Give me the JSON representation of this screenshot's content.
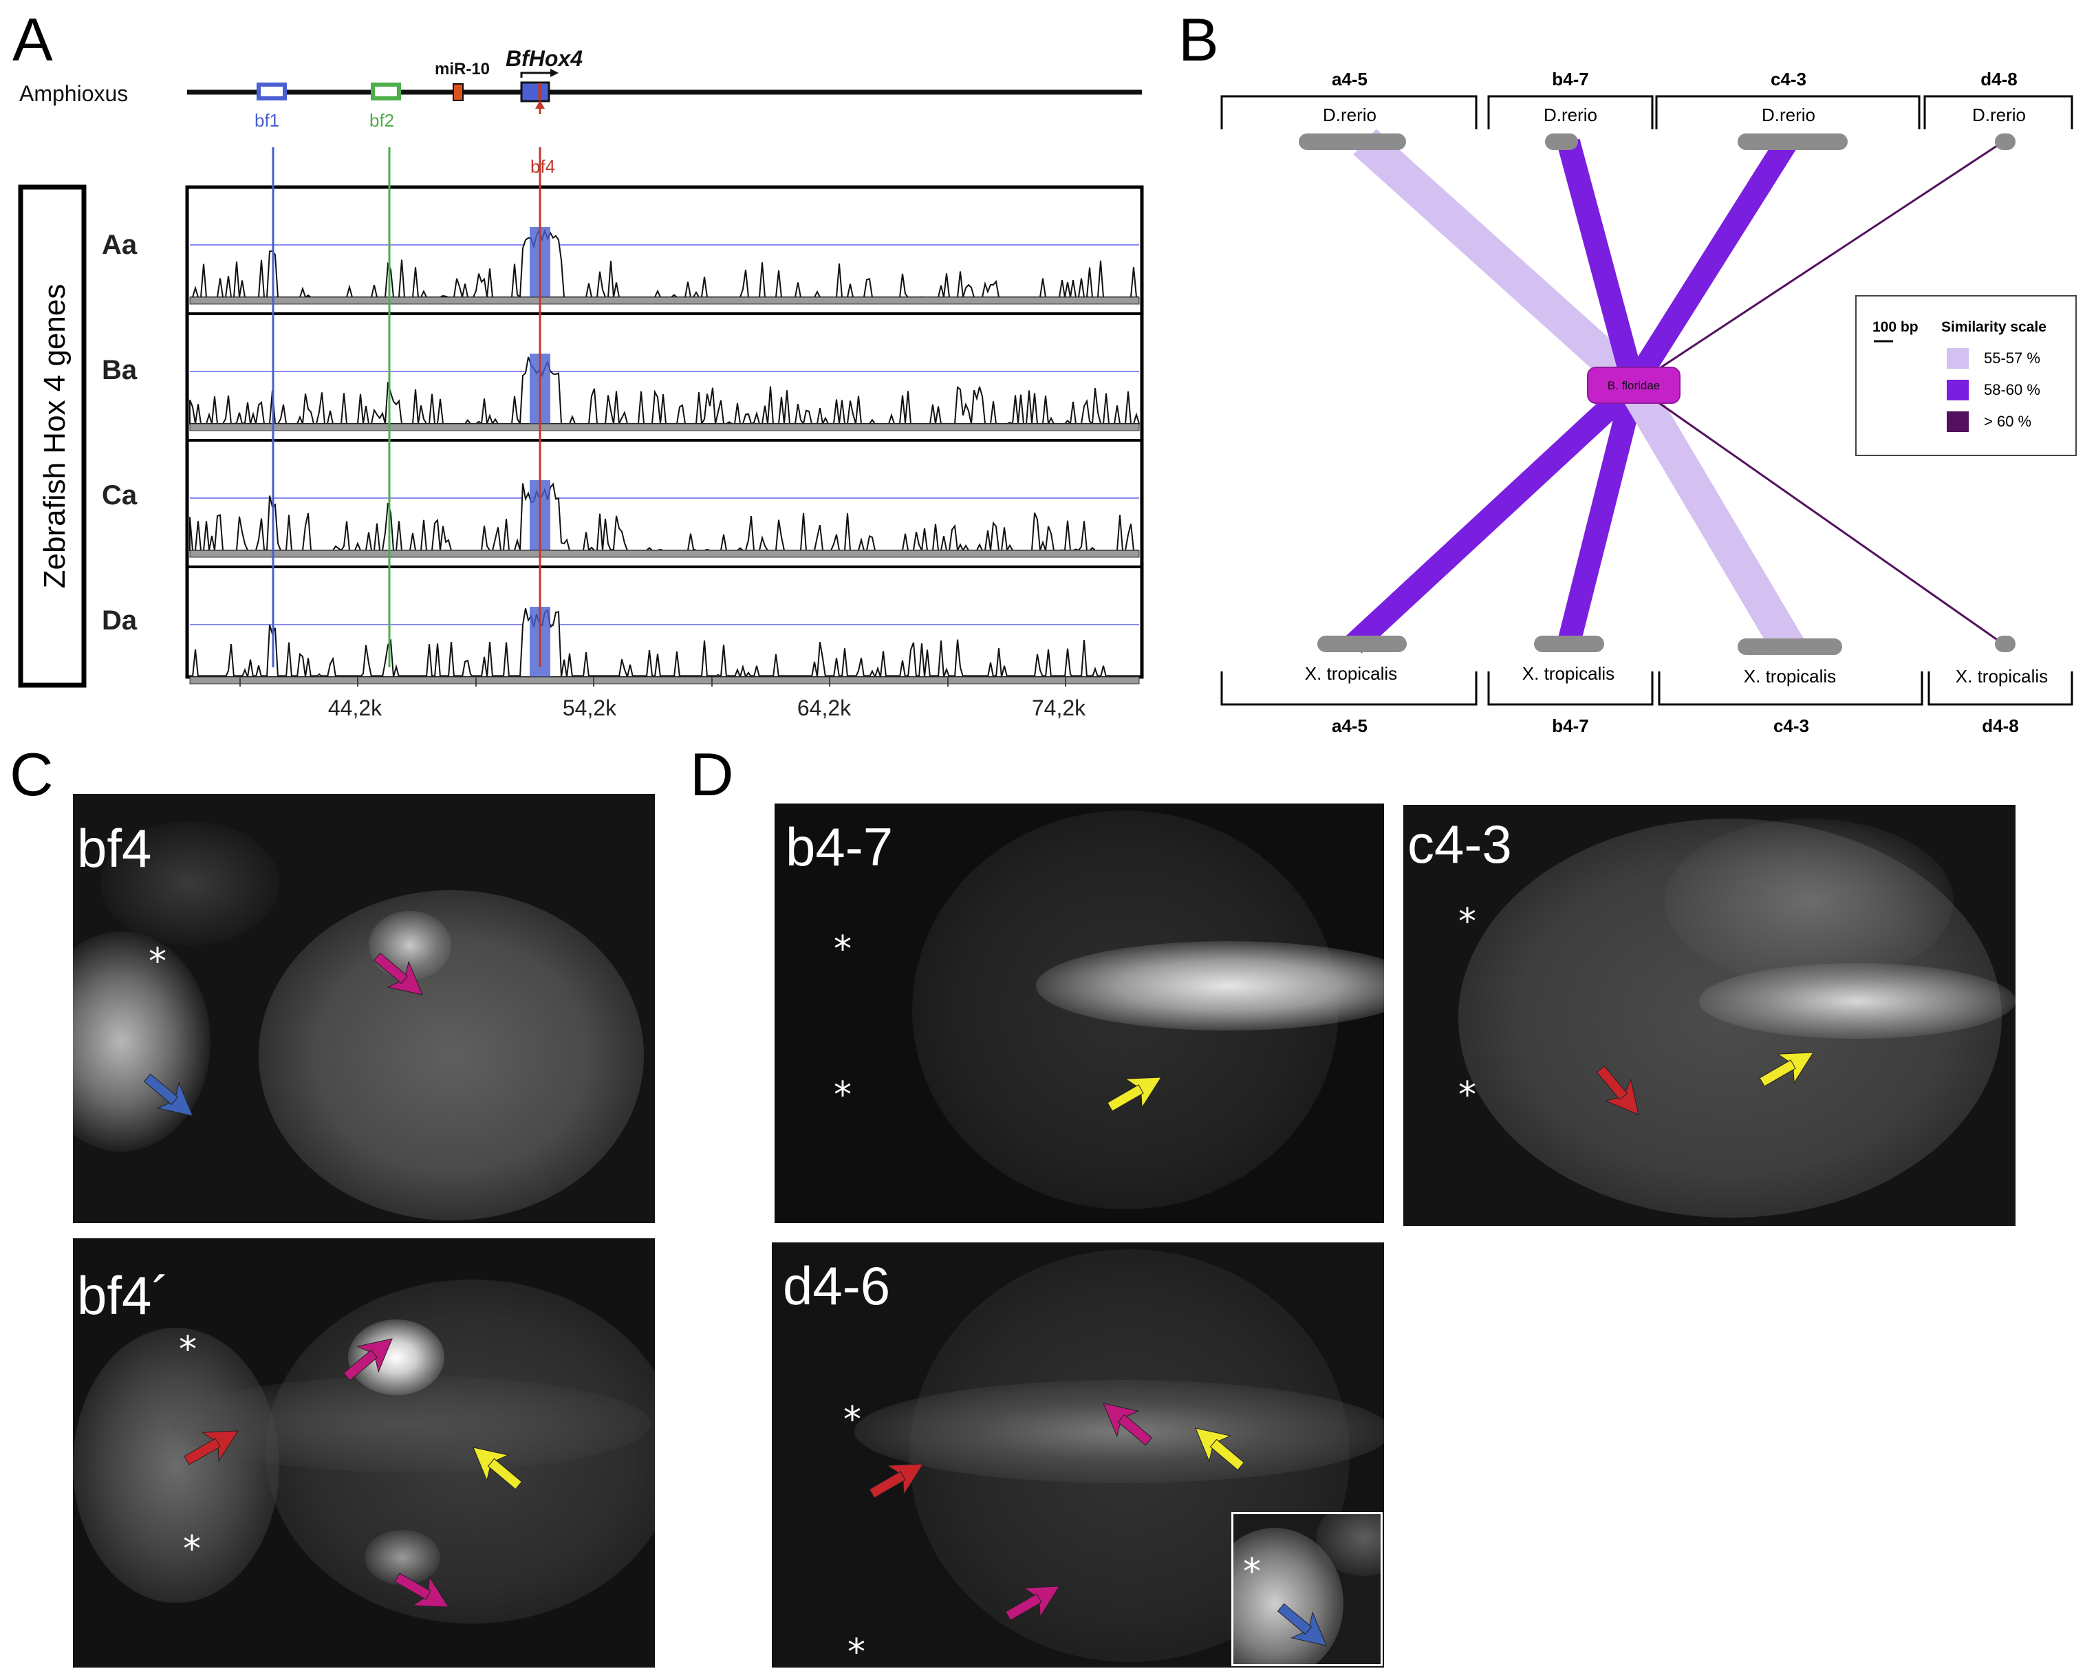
{
  "panels": {
    "a": "A",
    "b": "B",
    "c": "C",
    "d": "D"
  },
  "panel_a": {
    "species_label": "Amphioxus",
    "element_labels": {
      "bf1": "bf1",
      "bf2": "bf2",
      "bf4": "bf4",
      "mir": "miR-10",
      "gene": "BfHox4"
    },
    "vertical_title": "Zebrafish Hox 4 genes",
    "tracks": [
      "Aa",
      "Ba",
      "Ca",
      "Da"
    ],
    "x_ticks": [
      "44,2k",
      "54,2k",
      "64,2k",
      "74,2k"
    ],
    "colors": {
      "bf1": "#4a5fd1",
      "bf2": "#4daf4a",
      "bf4": "#c0392b",
      "mir": "#d9531e",
      "threshold": "#8a8af0",
      "conserved": "#d9848c"
    }
  },
  "panel_b": {
    "top_groups": [
      "a4-5",
      "b4-7",
      "c4-3",
      "d4-8"
    ],
    "top_species": [
      "D.rerio",
      "D.rerio",
      "D.rerio",
      "D.rerio"
    ],
    "bottom_groups": [
      "a4-5",
      "b4-7",
      "c4-3",
      "d4-8"
    ],
    "bottom_species": [
      "X. tropicalis",
      "X. tropicalis",
      "X. tropicalis",
      "X. tropicalis"
    ],
    "center_node": "B. floridae",
    "legend": {
      "scale_bar": "100 bp",
      "title": "Similarity scale",
      "items": [
        {
          "label": "55-57 %",
          "color": "#d4c1f2"
        },
        {
          "label": "58-60 %",
          "color": "#7a1fe0"
        },
        {
          "label": "> 60 %",
          "color": "#52105e"
        }
      ]
    }
  },
  "panel_c": {
    "labels": [
      "bf4",
      "bf4´"
    ],
    "star": "*"
  },
  "panel_d": {
    "labels": [
      "b4-7",
      "c4-3",
      "d4-6"
    ],
    "star": "*"
  },
  "arrow_colors": {
    "magenta": "#c1187e",
    "blue": "#3d62b8",
    "red": "#c8252b",
    "yellow": "#f1ea2a"
  }
}
